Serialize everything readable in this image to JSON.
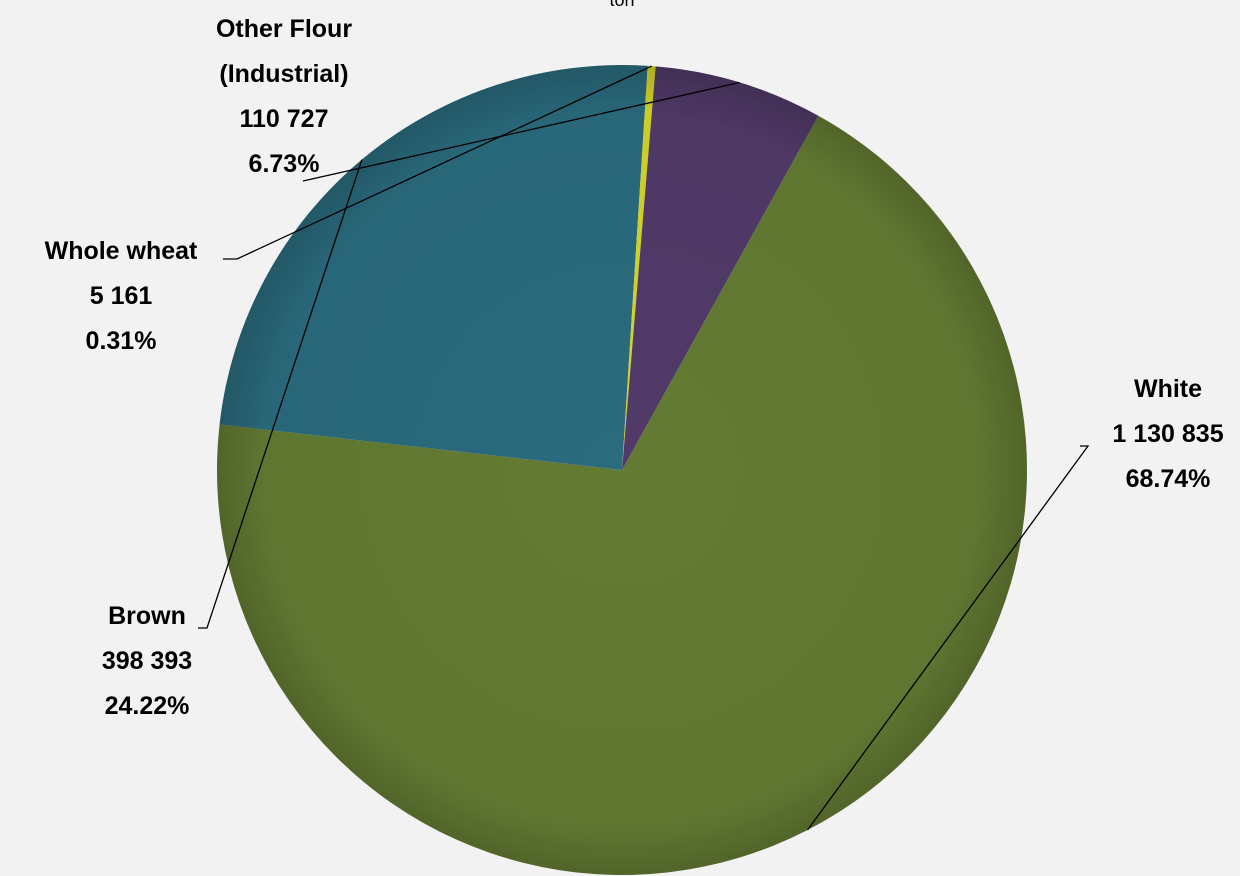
{
  "chart_data": {
    "type": "pie",
    "top_text_fragment": "ton",
    "slices": [
      {
        "name": "White",
        "value_label": "1 130 835",
        "value": 1130835,
        "percent": 68.74,
        "percent_label": "68.74%",
        "color": "#637b33"
      },
      {
        "name": "Brown",
        "value_label": "398 393",
        "value": 398393,
        "percent": 24.22,
        "percent_label": "24.22%",
        "color": "#2a6b7d"
      },
      {
        "name": "Whole wheat",
        "value_label": "5 161",
        "value": 5161,
        "percent": 0.31,
        "percent_label": "0.31%",
        "color": "#d4d42a"
      },
      {
        "name_lines": [
          "Other Flour",
          "(Industrial)"
        ],
        "value_label": "110 727",
        "value": 110727,
        "percent": 6.73,
        "percent_label": "6.73%",
        "color": "#513a68"
      }
    ],
    "legend": "none"
  }
}
